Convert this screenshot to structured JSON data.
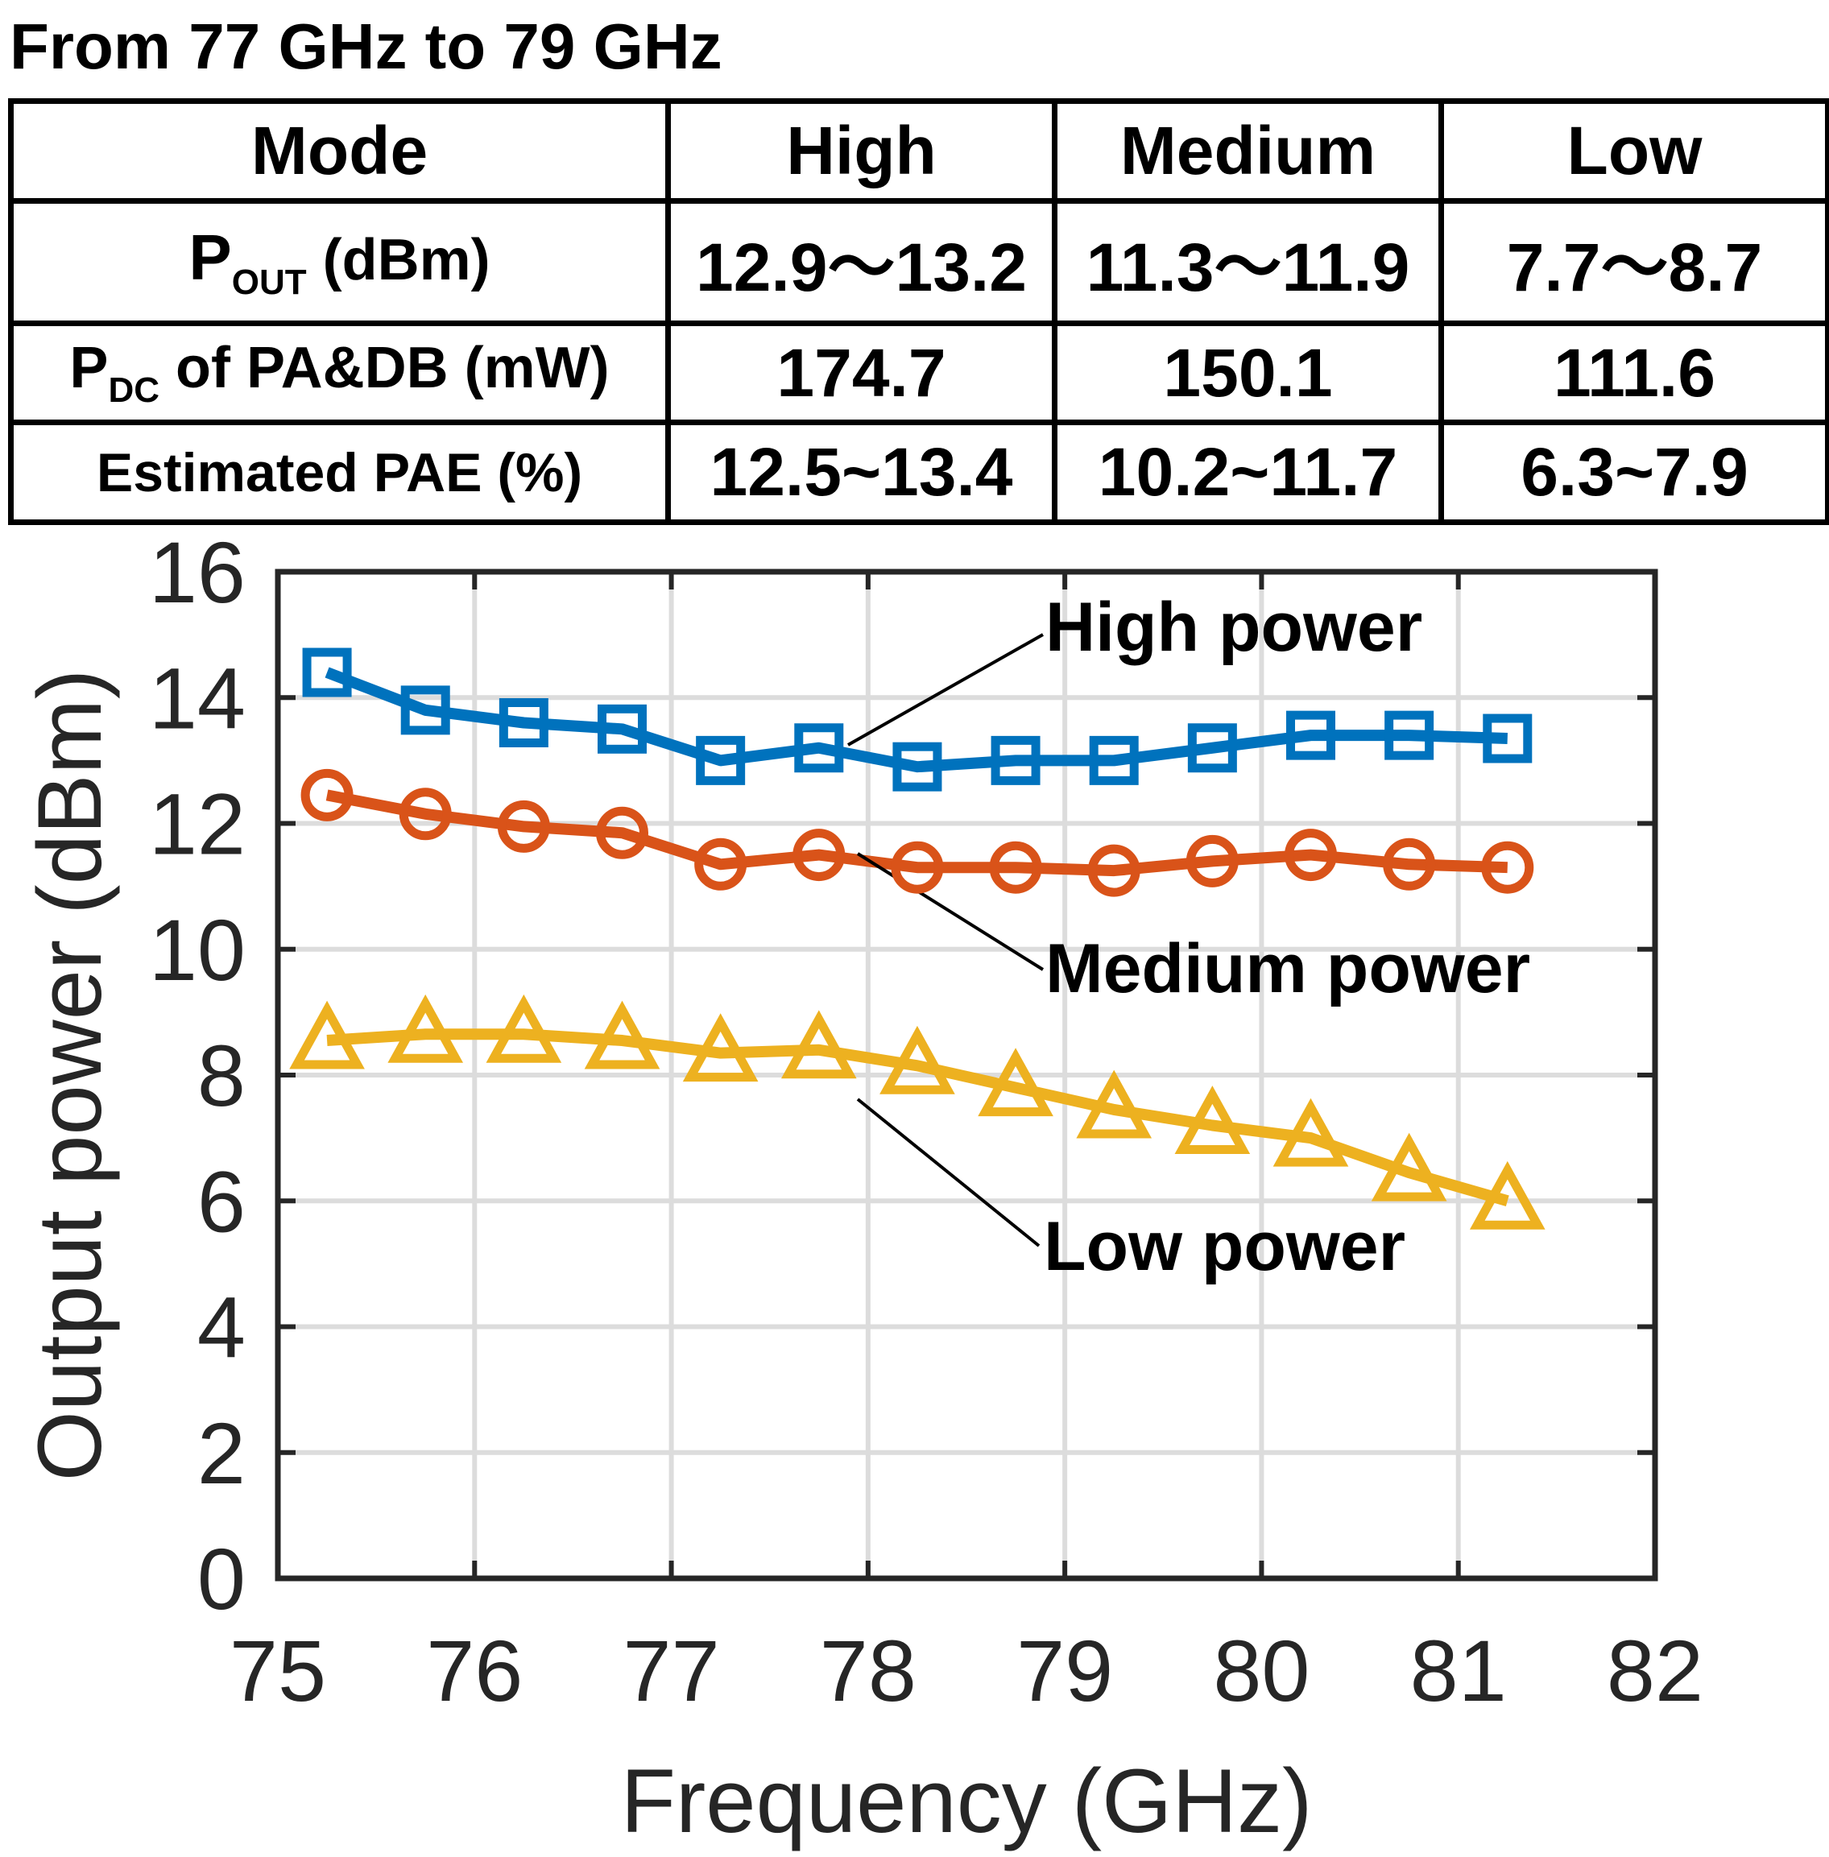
{
  "caption": "From 77 GHz to 79 GHz",
  "table": {
    "header": [
      "Mode",
      "High",
      "Medium",
      "Low"
    ],
    "rows": [
      {
        "label_main": "P",
        "label_sub": "OUT",
        "label_rest": " (dBm)",
        "values": [
          "12.9～13.2",
          "11.3～11.9",
          "7.7～8.7"
        ]
      },
      {
        "label_main": "P",
        "label_sub": "DC",
        "label_rest": " of PA&DB (mW)",
        "values": [
          "174.7",
          "150.1",
          "111.6"
        ]
      },
      {
        "label_main": "Estimated PAE (%)",
        "label_sub": "",
        "label_rest": "",
        "values": [
          "12.5~13.4",
          "10.2~11.7",
          "6.3~7.9"
        ]
      }
    ]
  },
  "chart_data": {
    "type": "line",
    "xlabel": "Frequency (GHz)",
    "ylabel": "Output power (dBm)",
    "xlim": [
      75,
      82
    ],
    "ylim": [
      0,
      16
    ],
    "xticks": [
      75,
      76,
      77,
      78,
      79,
      80,
      81,
      82
    ],
    "yticks": [
      0,
      2,
      4,
      6,
      8,
      10,
      12,
      14,
      16
    ],
    "grid": true,
    "x": [
      75.25,
      75.75,
      76.25,
      76.75,
      77.25,
      77.75,
      78.25,
      78.75,
      79.25,
      79.75,
      80.25,
      80.75,
      81.25
    ],
    "series": [
      {
        "name": "High power",
        "color": "#0072BD",
        "marker": "square",
        "values": [
          14.4,
          13.8,
          13.6,
          13.5,
          13.0,
          13.2,
          12.9,
          13.0,
          13.0,
          13.2,
          13.4,
          13.4,
          13.35
        ]
      },
      {
        "name": "Medium power",
        "color": "#D95319",
        "marker": "circle",
        "values": [
          12.45,
          12.15,
          11.95,
          11.85,
          11.35,
          11.5,
          11.3,
          11.3,
          11.25,
          11.4,
          11.5,
          11.35,
          11.3
        ]
      },
      {
        "name": "Low power",
        "color": "#EDB120",
        "marker": "triangle",
        "values": [
          8.55,
          8.65,
          8.65,
          8.55,
          8.35,
          8.4,
          8.15,
          7.8,
          7.45,
          7.2,
          7.0,
          6.45,
          6.0
        ]
      }
    ],
    "annotations": [
      {
        "text": "High power",
        "series": 0,
        "point_index": 5
      },
      {
        "text": "Medium power",
        "series": 1,
        "point_index": 5
      },
      {
        "text": "Low power",
        "series": 2,
        "point_index": 5
      }
    ]
  }
}
